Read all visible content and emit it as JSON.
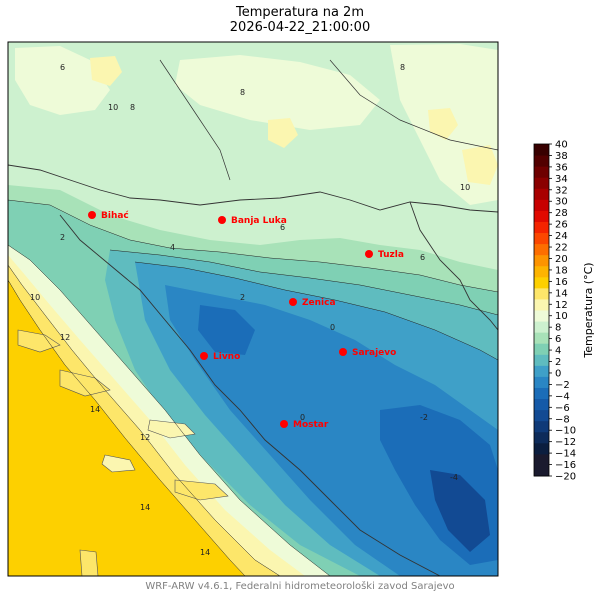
{
  "header": {
    "title": "Temperatura na 2m",
    "subtitle": "2026-04-22_21:00:00"
  },
  "footer": {
    "credit": "WRF-ARW v4.6.1, Federalni hidrometeorološki zavod Sarajevo"
  },
  "colorbar": {
    "label": "Temperatura (°C)",
    "ticks": [
      "40",
      "38",
      "36",
      "34",
      "32",
      "30",
      "28",
      "26",
      "24",
      "22",
      "20",
      "18",
      "16",
      "14",
      "12",
      "10",
      "8",
      "6",
      "4",
      "2",
      "0",
      "−2",
      "−4",
      "−6",
      "−8",
      "−10",
      "−12",
      "−14",
      "−16",
      "−20"
    ],
    "bands": [
      {
        "range": "-20..-16",
        "color": "#1a1a2e"
      },
      {
        "range": "-16..-14",
        "color": "#0b1e3f"
      },
      {
        "range": "-14..-12",
        "color": "#0d2b5a"
      },
      {
        "range": "-12..-10",
        "color": "#0f3a78"
      },
      {
        "range": "-10..-8",
        "color": "#124a93"
      },
      {
        "range": "-8..-6",
        "color": "#155aa8"
      },
      {
        "range": "-6..-4",
        "color": "#1b6db8"
      },
      {
        "range": "-4..-2",
        "color": "#2a86c4"
      },
      {
        "range": "-2..0",
        "color": "#3fa0c8"
      },
      {
        "range": "0..2",
        "color": "#5fbcbf"
      },
      {
        "range": "2..4",
        "color": "#7fd0b4"
      },
      {
        "range": "4..6",
        "color": "#a8e2b8"
      },
      {
        "range": "6..8",
        "color": "#cdf1cf"
      },
      {
        "range": "8..10",
        "color": "#eefbd8"
      },
      {
        "range": "10..12",
        "color": "#fbf6b0"
      },
      {
        "range": "12..14",
        "color": "#fde66a"
      },
      {
        "range": "14..16",
        "color": "#fdd000"
      },
      {
        "range": "16..18",
        "color": "#fdb400"
      },
      {
        "range": "18..20",
        "color": "#fd9400"
      },
      {
        "range": "20..22",
        "color": "#fd6e00"
      },
      {
        "range": "22..24",
        "color": "#fb4700"
      },
      {
        "range": "24..26",
        "color": "#f42400"
      },
      {
        "range": "26..28",
        "color": "#e10a00"
      },
      {
        "range": "28..30",
        "color": "#c80000"
      },
      {
        "range": "30..32",
        "color": "#a80000"
      },
      {
        "range": "32..34",
        "color": "#8a0000"
      },
      {
        "range": "34..36",
        "color": "#6e0000"
      },
      {
        "range": "36..38",
        "color": "#520000"
      },
      {
        "range": "38..40",
        "color": "#380000"
      }
    ]
  },
  "cities": [
    {
      "name": "Bihać"
    },
    {
      "name": "Banja Luka"
    },
    {
      "name": "Tuzla"
    },
    {
      "name": "Zenica"
    },
    {
      "name": "Sarajevo"
    },
    {
      "name": "Livno"
    },
    {
      "name": "Mostar"
    }
  ],
  "colors": {
    "city_marker": "#ff0000",
    "city_label": "#ff0000",
    "sea": "#fdd000",
    "border": "#333333"
  }
}
